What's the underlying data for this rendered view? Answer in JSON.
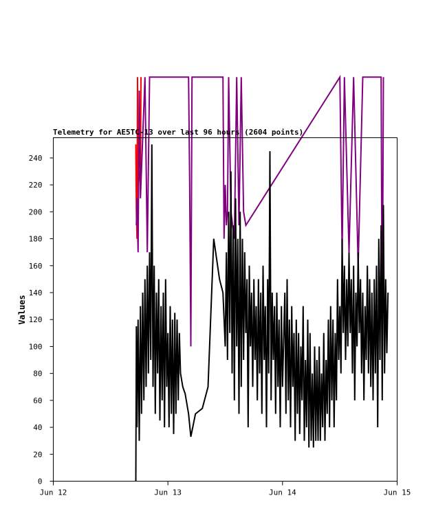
{
  "chart_data": {
    "type": "line",
    "title": "Telemetry for AE5TC-13 over last 96 hours (2604 points)",
    "xlabel": "",
    "ylabel": "Values",
    "x_ticks": [
      "Jun 12",
      "Jun 13",
      "Jun 14",
      "Jun 15"
    ],
    "x_range": [
      "Jun 12",
      "Jun 15"
    ],
    "y_ticks": [
      0,
      20,
      40,
      60,
      80,
      100,
      120,
      140,
      160,
      180,
      200,
      220,
      240
    ],
    "ylim": [
      0,
      255
    ],
    "grid": false,
    "series": [
      {
        "color": "#ff0000",
        "points": [
          [
            0.72,
            250
          ],
          [
            0.725,
            200
          ],
          [
            0.73,
            180
          ],
          [
            0.735,
            300
          ],
          [
            0.74,
            220
          ],
          [
            0.75,
            230
          ],
          [
            0.76,
            220
          ],
          [
            0.765,
            300
          ]
        ]
      },
      {
        "color": "#800080",
        "points": [
          [
            0.725,
            190
          ],
          [
            0.73,
            210
          ],
          [
            0.74,
            170
          ],
          [
            0.75,
            290
          ],
          [
            0.76,
            210
          ],
          [
            0.8,
            300
          ],
          [
            0.82,
            170
          ],
          [
            0.84,
            300
          ],
          [
            1.18,
            300
          ],
          [
            1.19,
            220
          ],
          [
            1.2,
            100
          ],
          [
            1.21,
            300
          ],
          [
            1.48,
            300
          ],
          [
            1.49,
            180
          ],
          [
            1.5,
            220
          ],
          [
            1.51,
            190
          ],
          [
            1.52,
            200
          ],
          [
            1.53,
            300
          ],
          [
            1.55,
            200
          ],
          [
            1.58,
            180
          ],
          [
            1.6,
            300
          ],
          [
            1.62,
            190
          ],
          [
            1.64,
            300
          ],
          [
            1.66,
            200
          ],
          [
            1.68,
            190
          ],
          [
            2.5,
            300
          ],
          [
            2.52,
            170
          ],
          [
            2.54,
            300
          ],
          [
            2.58,
            170
          ],
          [
            2.62,
            300
          ],
          [
            2.66,
            160
          ],
          [
            2.7,
            300
          ],
          [
            2.86,
            300
          ],
          [
            2.87,
            100
          ],
          [
            2.88,
            300
          ]
        ]
      },
      {
        "color": "#000000",
        "points": [
          [
            0.72,
            0
          ],
          [
            0.725,
            115
          ],
          [
            0.73,
            40
          ],
          [
            0.74,
            120
          ],
          [
            0.75,
            30
          ],
          [
            0.76,
            130
          ],
          [
            0.77,
            50
          ],
          [
            0.78,
            140
          ],
          [
            0.79,
            60
          ],
          [
            0.8,
            150
          ],
          [
            0.81,
            70
          ],
          [
            0.82,
            160
          ],
          [
            0.83,
            80
          ],
          [
            0.84,
            170
          ],
          [
            0.85,
            90
          ],
          [
            0.86,
            250
          ],
          [
            0.87,
            70
          ],
          [
            0.88,
            160
          ],
          [
            0.89,
            50
          ],
          [
            0.9,
            140
          ],
          [
            0.91,
            80
          ],
          [
            0.92,
            150
          ],
          [
            0.93,
            45
          ],
          [
            0.94,
            130
          ],
          [
            0.95,
            60
          ],
          [
            0.96,
            140
          ],
          [
            0.97,
            40
          ],
          [
            0.98,
            150
          ],
          [
            0.99,
            70
          ],
          [
            1.0,
            110
          ],
          [
            1.01,
            40
          ],
          [
            1.02,
            130
          ],
          [
            1.03,
            50
          ],
          [
            1.04,
            120
          ],
          [
            1.05,
            35
          ],
          [
            1.06,
            125
          ],
          [
            1.07,
            50
          ],
          [
            1.08,
            120
          ],
          [
            1.09,
            60
          ],
          [
            1.1,
            110
          ],
          [
            1.11,
            80
          ],
          [
            1.13,
            70
          ],
          [
            1.15,
            65
          ],
          [
            1.18,
            50
          ],
          [
            1.2,
            33
          ],
          [
            1.24,
            50
          ],
          [
            1.3,
            54
          ],
          [
            1.35,
            70
          ],
          [
            1.4,
            180
          ],
          [
            1.45,
            150
          ],
          [
            1.48,
            140
          ],
          [
            1.5,
            100
          ],
          [
            1.51,
            170
          ],
          [
            1.52,
            90
          ],
          [
            1.53,
            200
          ],
          [
            1.54,
            110
          ],
          [
            1.55,
            230
          ],
          [
            1.56,
            80
          ],
          [
            1.57,
            190
          ],
          [
            1.58,
            60
          ],
          [
            1.59,
            210
          ],
          [
            1.6,
            100
          ],
          [
            1.61,
            180
          ],
          [
            1.62,
            50
          ],
          [
            1.63,
            200
          ],
          [
            1.64,
            70
          ],
          [
            1.65,
            180
          ],
          [
            1.66,
            90
          ],
          [
            1.67,
            170
          ],
          [
            1.68,
            110
          ],
          [
            1.69,
            150
          ],
          [
            1.7,
            40
          ],
          [
            1.71,
            160
          ],
          [
            1.72,
            100
          ],
          [
            1.73,
            140
          ],
          [
            1.74,
            70
          ],
          [
            1.75,
            150
          ],
          [
            1.76,
            90
          ],
          [
            1.77,
            130
          ],
          [
            1.78,
            60
          ],
          [
            1.79,
            150
          ],
          [
            1.8,
            80
          ],
          [
            1.81,
            140
          ],
          [
            1.82,
            50
          ],
          [
            1.83,
            160
          ],
          [
            1.84,
            90
          ],
          [
            1.85,
            130
          ],
          [
            1.86,
            40
          ],
          [
            1.87,
            150
          ],
          [
            1.88,
            80
          ],
          [
            1.89,
            245
          ],
          [
            1.9,
            60
          ],
          [
            1.91,
            140
          ],
          [
            1.92,
            90
          ],
          [
            1.93,
            130
          ],
          [
            1.94,
            50
          ],
          [
            1.95,
            140
          ],
          [
            1.96,
            70
          ],
          [
            1.97,
            120
          ],
          [
            1.98,
            40
          ],
          [
            1.99,
            130
          ],
          [
            2.0,
            70
          ],
          [
            2.02,
            140
          ],
          [
            2.03,
            50
          ],
          [
            2.04,
            150
          ],
          [
            2.05,
            60
          ],
          [
            2.06,
            120
          ],
          [
            2.07,
            40
          ],
          [
            2.08,
            130
          ],
          [
            2.09,
            70
          ],
          [
            2.1,
            110
          ],
          [
            2.11,
            30
          ],
          [
            2.12,
            120
          ],
          [
            2.13,
            50
          ],
          [
            2.14,
            110
          ],
          [
            2.15,
            35
          ],
          [
            2.16,
            100
          ],
          [
            2.17,
            60
          ],
          [
            2.18,
            130
          ],
          [
            2.19,
            30
          ],
          [
            2.2,
            90
          ],
          [
            2.21,
            40
          ],
          [
            2.22,
            120
          ],
          [
            2.23,
            25
          ],
          [
            2.24,
            110
          ],
          [
            2.25,
            30
          ],
          [
            2.26,
            80
          ],
          [
            2.27,
            25
          ],
          [
            2.28,
            100
          ],
          [
            2.29,
            30
          ],
          [
            2.3,
            90
          ],
          [
            2.31,
            30
          ],
          [
            2.32,
            100
          ],
          [
            2.33,
            30
          ],
          [
            2.34,
            80
          ],
          [
            2.35,
            40
          ],
          [
            2.36,
            110
          ],
          [
            2.37,
            30
          ],
          [
            2.38,
            90
          ],
          [
            2.39,
            50
          ],
          [
            2.4,
            120
          ],
          [
            2.41,
            40
          ],
          [
            2.42,
            130
          ],
          [
            2.43,
            60
          ],
          [
            2.44,
            120
          ],
          [
            2.45,
            40
          ],
          [
            2.46,
            110
          ],
          [
            2.47,
            60
          ],
          [
            2.48,
            150
          ],
          [
            2.49,
            90
          ],
          [
            2.5,
            130
          ],
          [
            2.51,
            80
          ],
          [
            2.52,
            180
          ],
          [
            2.53,
            110
          ],
          [
            2.54,
            160
          ],
          [
            2.55,
            90
          ],
          [
            2.56,
            150
          ],
          [
            2.57,
            100
          ],
          [
            2.58,
            170
          ],
          [
            2.59,
            110
          ],
          [
            2.6,
            150
          ],
          [
            2.61,
            80
          ],
          [
            2.62,
            160
          ],
          [
            2.63,
            60
          ],
          [
            2.64,
            140
          ],
          [
            2.65,
            100
          ],
          [
            2.66,
            170
          ],
          [
            2.67,
            110
          ],
          [
            2.68,
            150
          ],
          [
            2.69,
            80
          ],
          [
            2.7,
            140
          ],
          [
            2.71,
            60
          ],
          [
            2.72,
            130
          ],
          [
            2.73,
            90
          ],
          [
            2.74,
            160
          ],
          [
            2.75,
            80
          ],
          [
            2.76,
            150
          ],
          [
            2.77,
            70
          ],
          [
            2.78,
            140
          ],
          [
            2.79,
            60
          ],
          [
            2.8,
            150
          ],
          [
            2.81,
            80
          ],
          [
            2.82,
            160
          ],
          [
            2.83,
            40
          ],
          [
            2.84,
            180
          ],
          [
            2.85,
            90
          ],
          [
            2.86,
            190
          ],
          [
            2.87,
            60
          ],
          [
            2.88,
            205
          ],
          [
            2.89,
            80
          ],
          [
            2.9,
            150
          ],
          [
            2.91,
            95
          ],
          [
            2.92,
            140
          ]
        ]
      }
    ]
  }
}
